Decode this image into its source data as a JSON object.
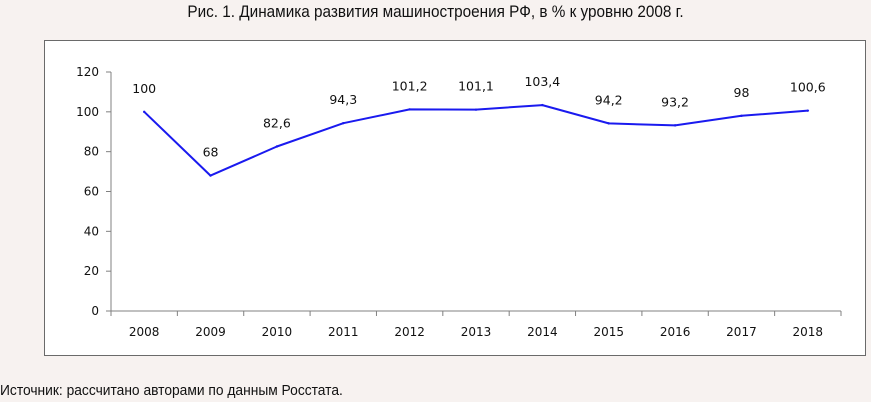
{
  "figure": {
    "title": "Рис. 1. Динамика развития машиностроения РФ, в % к уровню 2008 г.",
    "source": "Источник: рассчитано авторами по данным Росстата."
  },
  "chart_data": {
    "type": "line",
    "title": "Рис. 1. Динамика развития машиностроения РФ, в % к уровню 2008 г.",
    "xlabel": "",
    "ylabel": "",
    "categories": [
      "2008",
      "2009",
      "2010",
      "2011",
      "2012",
      "2013",
      "2014",
      "2015",
      "2016",
      "2017",
      "2018"
    ],
    "series": [
      {
        "values": [
          100,
          68,
          82.6,
          94.3,
          101.2,
          101.1,
          103.4,
          94.2,
          93.2,
          98,
          100.6
        ],
        "data_labels": [
          "100",
          "68",
          "82,6",
          "94,3",
          "101,2",
          "101,1",
          "103,4",
          "94,2",
          "93,2",
          "98",
          "100,6"
        ],
        "color": "#1a1aef"
      }
    ],
    "ylim": [
      0,
      120
    ],
    "yticks": [
      0,
      20,
      40,
      60,
      80,
      100,
      120
    ],
    "grid": false,
    "legend": "none"
  }
}
